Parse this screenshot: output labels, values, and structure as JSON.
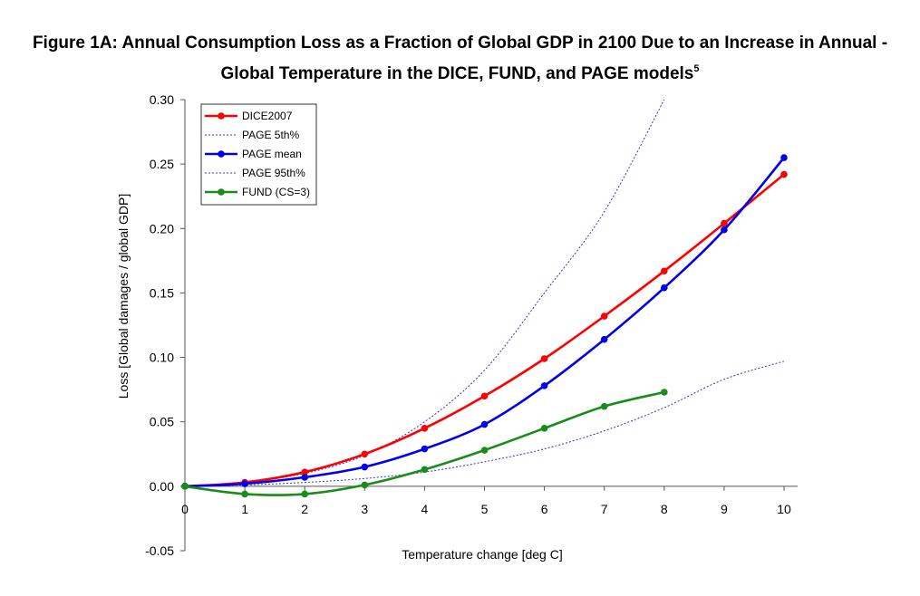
{
  "chart_data": {
    "type": "line",
    "title_line1": "Figure 1A: Annual Consumption Loss as a Fraction of Global GDP in 2100 Due to an Increase in Annual -",
    "title_line2": "Global Temperature in the DICE, FUND, and PAGE models",
    "title_footnote": "5",
    "xlabel": "Temperature change [deg C]",
    "ylabel": "Loss  [Global damages / global GDP]",
    "xlim": [
      0,
      10
    ],
    "ylim": [
      -0.05,
      0.3
    ],
    "x_ticks": [
      0,
      1,
      2,
      3,
      4,
      5,
      6,
      7,
      8,
      9,
      10
    ],
    "x_tick_labels": [
      "0",
      "1",
      "2",
      "3",
      "4",
      "5",
      "6",
      "7",
      "8",
      "9",
      "10"
    ],
    "y_ticks": [
      -0.05,
      0.0,
      0.05,
      0.1,
      0.15,
      0.2,
      0.25,
      0.3
    ],
    "y_tick_labels": [
      "-0.05",
      "0.00",
      "0.05",
      "0.10",
      "0.15",
      "0.20",
      "0.25",
      "0.30"
    ],
    "grid": false,
    "legend_position": "top-left",
    "series": [
      {
        "name": "DICE2007",
        "color": "#ff0000",
        "style": "solid-markers",
        "x": [
          0,
          1,
          2,
          3,
          4,
          5,
          6,
          7,
          8,
          9,
          10
        ],
        "y": [
          0.0,
          0.003,
          0.011,
          0.025,
          0.045,
          0.07,
          0.099,
          0.132,
          0.167,
          0.204,
          0.242
        ]
      },
      {
        "name": "PAGE 5th%",
        "color": "#3333cc",
        "style": "dotted",
        "x": [
          0,
          1,
          2,
          3,
          4,
          5,
          6,
          7,
          8,
          9,
          10
        ],
        "y": [
          0.0,
          0.001,
          0.003,
          0.006,
          0.011,
          0.019,
          0.029,
          0.043,
          0.061,
          0.083,
          0.097
        ]
      },
      {
        "name": "PAGE mean",
        "color": "#0000ee",
        "style": "solid-markers",
        "x": [
          0,
          1,
          2,
          3,
          4,
          5,
          6,
          7,
          8,
          9,
          10
        ],
        "y": [
          0.0,
          0.002,
          0.007,
          0.015,
          0.029,
          0.048,
          0.078,
          0.114,
          0.154,
          0.199,
          0.255
        ]
      },
      {
        "name": "PAGE 95th%",
        "color": "#3333cc",
        "style": "dotted",
        "x": [
          0,
          1,
          2,
          3,
          4,
          5,
          6,
          7,
          8
        ],
        "y": [
          0.0,
          0.003,
          0.01,
          0.024,
          0.05,
          0.09,
          0.15,
          0.213,
          0.3
        ]
      },
      {
        "name": "FUND (CS=3)",
        "color": "#1a8c1a",
        "style": "solid-markers",
        "x": [
          0,
          1,
          2,
          3,
          4,
          5,
          6,
          7,
          8
        ],
        "y": [
          0.0,
          -0.006,
          -0.006,
          0.001,
          0.013,
          0.028,
          0.045,
          0.062,
          0.073
        ]
      }
    ]
  }
}
